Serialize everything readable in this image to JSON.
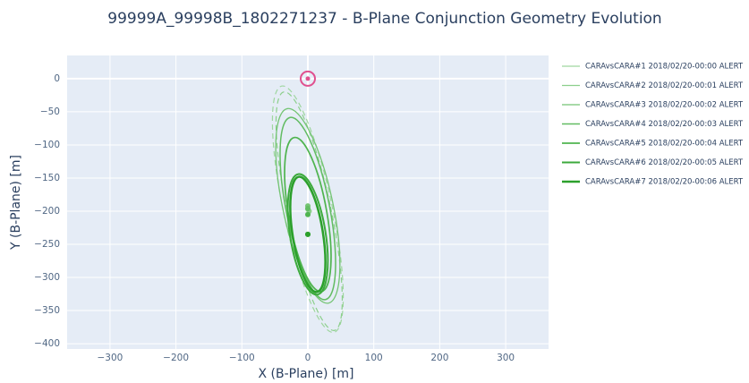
{
  "chart_data": {
    "type": "ellipse",
    "title": "99999A_99998B_1802271237 - B-Plane Conjunction Geometry Evolution",
    "x_label": "X (B-Plane)  [m]",
    "y_label": "Y (B-Plane)  [m]",
    "xlim": [
      -365,
      365
    ],
    "ylim": [
      35,
      -408
    ],
    "xticks": [
      {
        "value": -300,
        "label": "−300"
      },
      {
        "value": -200,
        "label": "−200"
      },
      {
        "value": -100,
        "label": "−100"
      },
      0,
      100,
      200,
      300
    ],
    "yticks": [
      0,
      {
        "value": -50,
        "label": "−50"
      },
      {
        "value": -100,
        "label": "−100"
      },
      {
        "value": -150,
        "label": "−150"
      },
      {
        "value": -200,
        "label": "−200"
      },
      {
        "value": -250,
        "label": "−250"
      },
      {
        "value": -300,
        "label": "−300"
      },
      {
        "value": -350,
        "label": "−350"
      },
      {
        "value": -400,
        "label": "−400"
      }
    ],
    "grid": true,
    "legend": "right",
    "origin_marker": {
      "x": 0,
      "y": 0,
      "color": "#e0508f"
    },
    "series": [
      {
        "name": "CARAvsCARA#1 2018/02/20-00:00 ALERT",
        "color": "#9fd69f",
        "x": 0,
        "y": -197,
        "semi_major": 190,
        "semi_minor": 37,
        "angle": 12,
        "dash": true,
        "width": 1.2
      },
      {
        "name": "CARAvsCARA#2 2018/02/20-00:01 ALERT",
        "color": "#8ccf8c",
        "x": 2,
        "y": -200,
        "semi_major": 184,
        "semi_minor": 33,
        "angle": 12,
        "dash": true,
        "width": 1.2
      },
      {
        "name": "CARAvsCARA#3 2018/02/20-00:02 ALERT",
        "color": "#74c474",
        "x": 0,
        "y": -192,
        "semi_major": 150,
        "semi_minor": 38,
        "angle": 12,
        "dash": false,
        "width": 1.3
      },
      {
        "name": "CARAvsCARA#4 2018/02/20-00:03 ALERT",
        "color": "#62bc62",
        "x": 0,
        "y": -196,
        "semi_major": 140,
        "semi_minor": 33,
        "angle": 11,
        "dash": false,
        "width": 1.5
      },
      {
        "name": "CARAvsCARA#5 2018/02/20-00:04 ALERT",
        "color": "#4fb44f",
        "x": 0,
        "y": -205,
        "semi_major": 118,
        "semi_minor": 29,
        "angle": 10,
        "dash": false,
        "width": 1.7
      },
      {
        "name": "CARAvsCARA#6 2018/02/20-00:05 ALERT",
        "color": "#3caa3c",
        "x": 0,
        "y": -235,
        "semi_major": 92,
        "semi_minor": 27,
        "angle": 9,
        "dash": false,
        "width": 2
      },
      {
        "name": "CARAvsCARA#7 2018/02/20-00:06 ALERT",
        "color": "#2ca02c",
        "x": 0,
        "y": -235,
        "semi_major": 88,
        "semi_minor": 23,
        "angle": 9,
        "dash": false,
        "width": 2.5
      }
    ]
  }
}
